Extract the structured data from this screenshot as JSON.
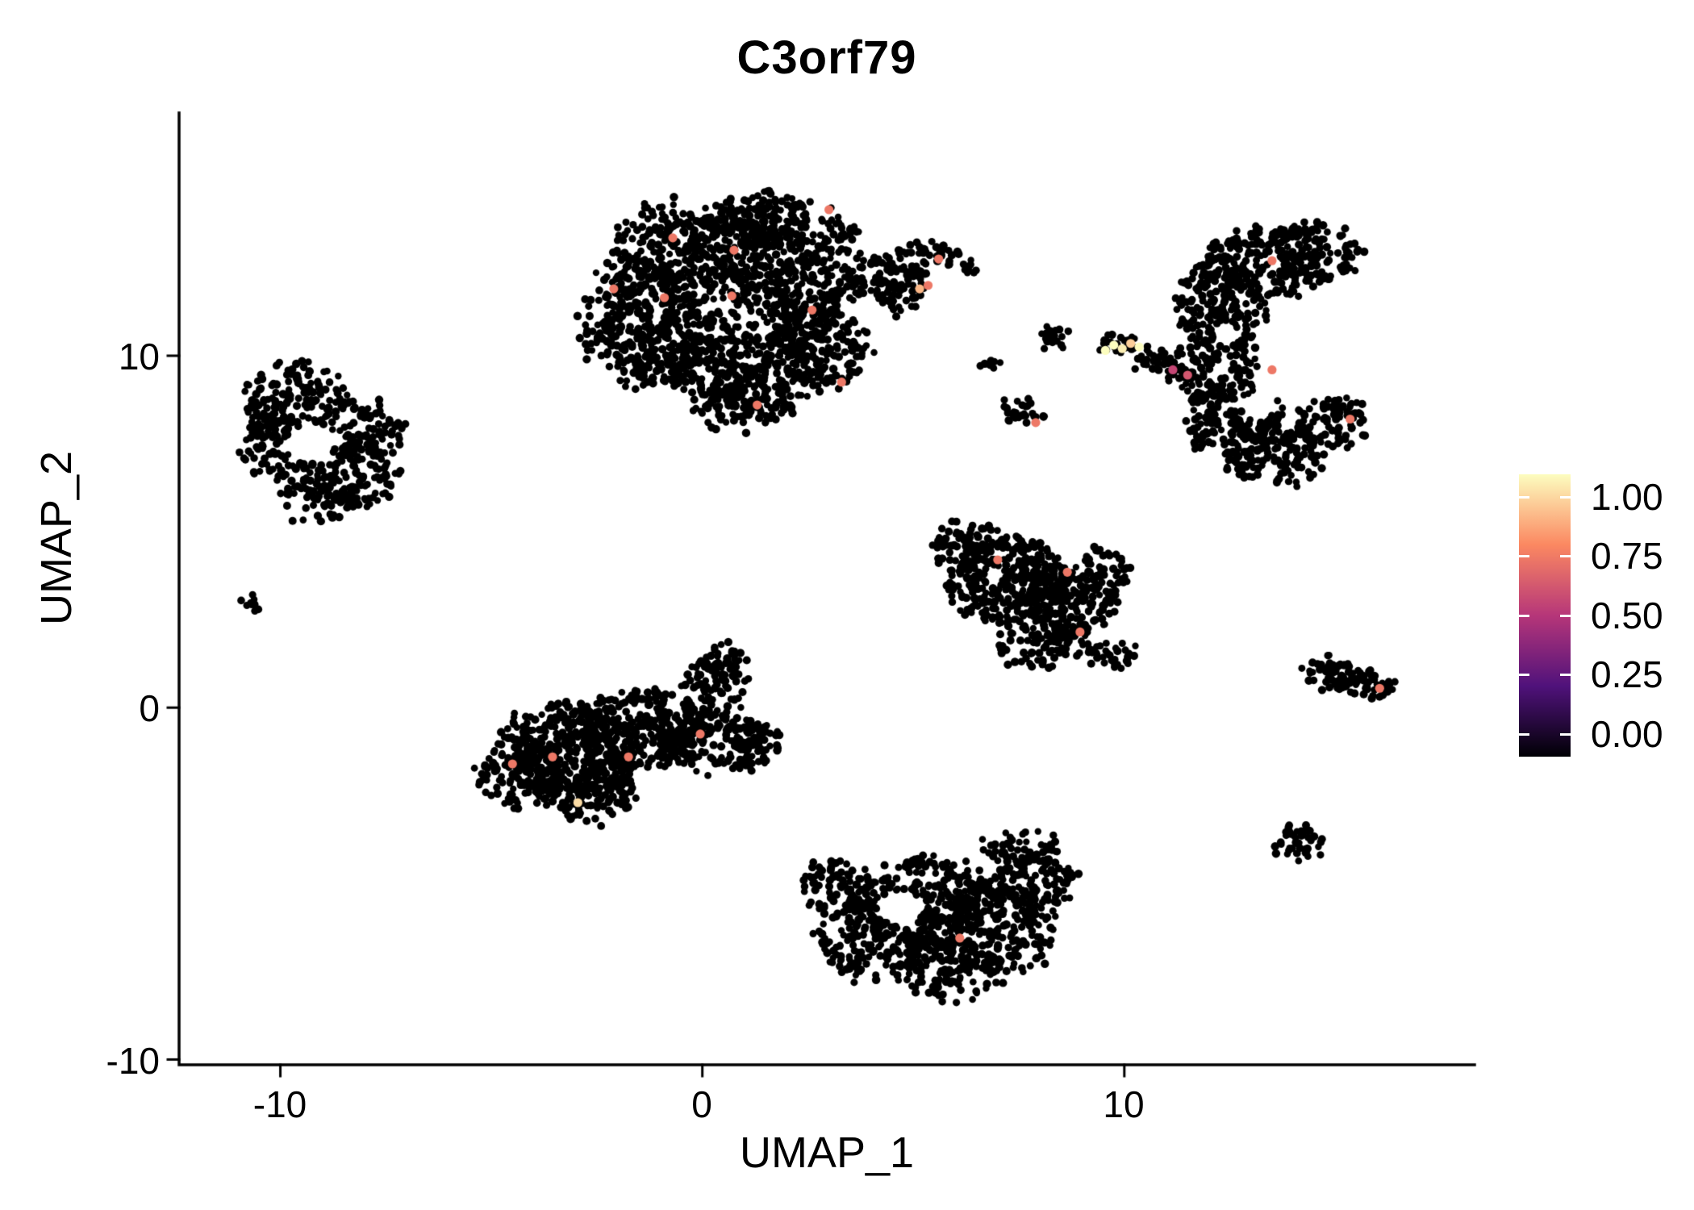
{
  "chart_data": {
    "type": "scatter",
    "title": "C3orf79",
    "xlabel": "UMAP_1",
    "ylabel": "UMAP_2",
    "xlim": [
      -12.4,
      18.3
    ],
    "ylim": [
      -10.15,
      16.9
    ],
    "grid": false,
    "legend_position": "right",
    "x_ticks": {
      "values": [
        -10,
        0,
        10
      ],
      "labels": [
        "-10",
        "0",
        "10"
      ]
    },
    "y_ticks": {
      "values": [
        10,
        0,
        -10
      ],
      "labels": [
        "10",
        "0",
        "-10"
      ]
    },
    "point_color": "#000000",
    "point_radius": 4.6,
    "seed": 42,
    "colormap": {
      "name": "magma",
      "stops": [
        [
          0,
          "#000004"
        ],
        [
          0.25,
          "#50127B"
        ],
        [
          0.5,
          "#B63679"
        ],
        [
          0.75,
          "#FB8861"
        ],
        [
          1,
          "#FCFDBF"
        ]
      ]
    },
    "legend": {
      "labels": [
        "1.00",
        "0.75",
        "0.50",
        "0.25",
        "0.00"
      ],
      "values": [
        1,
        0.75,
        0.5,
        0.25,
        0
      ]
    },
    "clusters": [
      {
        "name": "main-top",
        "patches": [
          [
            0.3,
            11.5,
            2.9,
            2.6,
            650
          ],
          [
            -1.3,
            10.8,
            1.6,
            1.8,
            240
          ],
          [
            2.2,
            12.6,
            1.8,
            1.8,
            280
          ],
          [
            1.2,
            9.6,
            2.0,
            1.2,
            200
          ],
          [
            -0.5,
            13.2,
            1.5,
            1.2,
            170
          ],
          [
            2.8,
            10.3,
            1.2,
            1.2,
            140
          ],
          [
            1.5,
            14.0,
            1.0,
            0.7,
            80
          ],
          [
            1.0,
            8.6,
            1.2,
            0.7,
            90
          ],
          [
            4.3,
            12.3,
            0.9,
            0.6,
            60
          ],
          [
            5.2,
            12.8,
            0.8,
            0.5,
            50
          ],
          [
            4.6,
            11.7,
            0.6,
            0.5,
            40
          ],
          [
            6.2,
            12.5,
            0.25,
            0.2,
            10
          ]
        ],
        "holes": []
      },
      {
        "name": "left-ring",
        "patches": [
          [
            -9.6,
            8.8,
            1.2,
            1.0,
            140
          ],
          [
            -10.1,
            7.5,
            0.9,
            1.1,
            120
          ],
          [
            -8.4,
            6.6,
            1.3,
            0.9,
            140
          ],
          [
            -8.0,
            7.9,
            0.9,
            0.9,
            90
          ],
          [
            -9.1,
            5.9,
            0.9,
            0.6,
            60
          ]
        ],
        "holes": [
          [
            -9.3,
            7.5,
            0.6,
            0.55
          ]
        ]
      },
      {
        "name": "tiny-left-dot",
        "patches": [
          [
            -10.7,
            2.95,
            0.16,
            0.14,
            10
          ]
        ],
        "holes": []
      },
      {
        "name": "bottom-left",
        "patches": [
          [
            -3.2,
            -1.2,
            1.7,
            1.3,
            330
          ],
          [
            -1.5,
            -0.6,
            1.6,
            1.1,
            280
          ],
          [
            -4.3,
            -1.8,
            1.0,
            1.0,
            140
          ],
          [
            -2.7,
            -2.4,
            1.2,
            0.8,
            140
          ],
          [
            0.2,
            -0.9,
            1.3,
            0.9,
            140
          ],
          [
            0.3,
            0.6,
            0.7,
            0.9,
            70
          ],
          [
            0.5,
            1.3,
            0.5,
            0.5,
            35
          ],
          [
            1.2,
            -1.1,
            0.7,
            0.6,
            50
          ]
        ],
        "holes": []
      },
      {
        "name": "bottom-center",
        "patches": [
          [
            5.2,
            -5.5,
            1.7,
            1.2,
            280
          ],
          [
            6.8,
            -6.3,
            1.6,
            1.3,
            260
          ],
          [
            4.0,
            -6.6,
            1.3,
            1.1,
            180
          ],
          [
            5.8,
            -7.5,
            1.3,
            0.8,
            120
          ],
          [
            7.9,
            -5.0,
            1.0,
            0.8,
            110
          ],
          [
            3.2,
            -5.0,
            0.8,
            0.7,
            70
          ],
          [
            7.6,
            -4.0,
            0.9,
            0.5,
            60
          ]
        ],
        "holes": [
          [
            4.7,
            -5.7,
            0.55,
            0.5
          ]
        ]
      },
      {
        "name": "mid-right-triangle",
        "patches": [
          [
            7.2,
            3.6,
            1.5,
            1.2,
            280
          ],
          [
            8.6,
            3.0,
            1.2,
            1.0,
            170
          ],
          [
            6.3,
            4.6,
            0.9,
            0.7,
            90
          ],
          [
            8.0,
            1.8,
            1.0,
            0.6,
            80
          ],
          [
            9.5,
            3.9,
            0.6,
            0.8,
            55
          ],
          [
            9.7,
            1.5,
            0.5,
            0.5,
            35
          ]
        ],
        "holes": []
      },
      {
        "name": "right-tall",
        "patches": [
          [
            13.3,
            12.6,
            1.5,
            1.0,
            200
          ],
          [
            12.3,
            11.4,
            1.1,
            1.2,
            170
          ],
          [
            12.2,
            9.8,
            1.0,
            1.2,
            150
          ],
          [
            12.6,
            8.2,
            1.2,
            1.1,
            160
          ],
          [
            13.5,
            7.2,
            1.2,
            0.9,
            140
          ],
          [
            14.6,
            12.9,
            1.1,
            0.8,
            100
          ],
          [
            14.9,
            8.1,
            0.9,
            0.7,
            80
          ]
        ],
        "holes": [
          [
            13.6,
            9.9,
            0.45,
            0.5
          ],
          [
            13.2,
            8.6,
            0.35,
            0.4
          ],
          [
            12.4,
            10.6,
            0.3,
            0.35
          ]
        ]
      },
      {
        "name": "small-blob",
        "patches": [
          [
            8.3,
            10.55,
            0.35,
            0.28,
            22
          ]
        ],
        "holes": []
      },
      {
        "name": "small-streak",
        "patches": [
          [
            9.9,
            10.3,
            0.5,
            0.25,
            26
          ],
          [
            10.7,
            9.9,
            0.5,
            0.25,
            26
          ],
          [
            11.3,
            9.5,
            0.4,
            0.2,
            16
          ]
        ],
        "holes": []
      },
      {
        "name": "small-streak-b",
        "patches": [
          [
            7.6,
            8.4,
            0.55,
            0.3,
            30
          ]
        ],
        "holes": []
      },
      {
        "name": "specks",
        "patches": [
          [
            6.75,
            9.8,
            0.2,
            0.15,
            8
          ]
        ],
        "holes": []
      },
      {
        "name": "right-small-pointed",
        "patches": [
          [
            14.8,
            1.0,
            0.5,
            0.4,
            40
          ],
          [
            15.5,
            0.75,
            0.6,
            0.35,
            40
          ],
          [
            16.1,
            0.55,
            0.35,
            0.22,
            20
          ]
        ],
        "holes": []
      },
      {
        "name": "bottom-right-blob",
        "patches": [
          [
            14.1,
            -3.9,
            0.55,
            0.5,
            45
          ]
        ],
        "holes": []
      }
    ],
    "expressing_cells": [
      [
        3.0,
        14.15,
        0.7
      ],
      [
        -0.7,
        13.35,
        0.7
      ],
      [
        0.75,
        13.0,
        0.7
      ],
      [
        5.6,
        12.75,
        0.7
      ],
      [
        -2.1,
        11.9,
        0.7
      ],
      [
        -0.9,
        11.65,
        0.7
      ],
      [
        0.7,
        11.7,
        0.7
      ],
      [
        2.6,
        11.3,
        0.7
      ],
      [
        5.15,
        11.9,
        0.85
      ],
      [
        5.35,
        12.0,
        0.7
      ],
      [
        3.3,
        9.25,
        0.7
      ],
      [
        1.3,
        8.6,
        0.7
      ],
      [
        7.9,
        8.1,
        0.7
      ],
      [
        9.55,
        10.15,
        1.0
      ],
      [
        9.75,
        10.3,
        1.0
      ],
      [
        9.95,
        10.2,
        0.97
      ],
      [
        10.15,
        10.35,
        0.9
      ],
      [
        10.35,
        10.25,
        1.0
      ],
      [
        11.15,
        9.6,
        0.55
      ],
      [
        11.5,
        9.45,
        0.6
      ],
      [
        13.5,
        12.7,
        0.7
      ],
      [
        13.5,
        9.6,
        0.7
      ],
      [
        15.35,
        8.2,
        0.7
      ],
      [
        7.0,
        4.2,
        0.7
      ],
      [
        8.65,
        3.85,
        0.7
      ],
      [
        8.95,
        2.15,
        0.7
      ],
      [
        16.05,
        0.55,
        0.7
      ],
      [
        -0.05,
        -0.75,
        0.7
      ],
      [
        -1.75,
        -1.4,
        0.7
      ],
      [
        -3.55,
        -1.4,
        0.7
      ],
      [
        -4.5,
        -1.6,
        0.7
      ],
      [
        -2.95,
        -2.7,
        0.93
      ],
      [
        6.1,
        -6.55,
        0.7
      ]
    ]
  }
}
